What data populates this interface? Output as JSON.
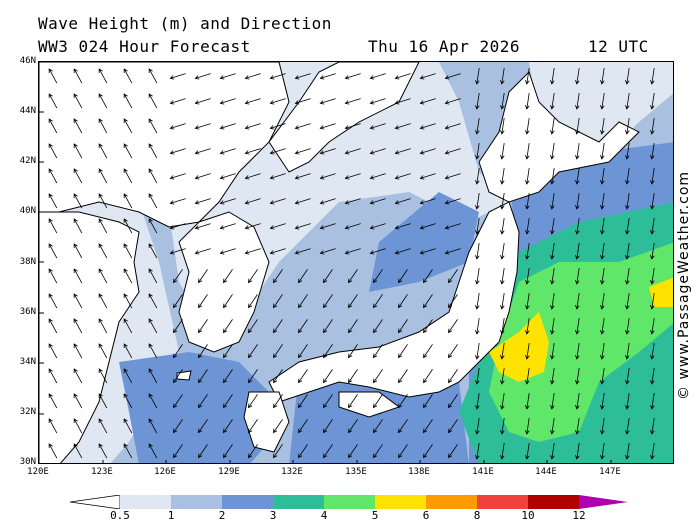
{
  "header": {
    "title": "Wave Height (m) and Direction",
    "model": "WW3 024 Hour Forecast",
    "date": "Thu 16 Apr 2026",
    "time": "12 UTC"
  },
  "copyright": "© www.PassageWeather.com",
  "map": {
    "lat_labels": [
      "46N",
      "44N",
      "42N",
      "40N",
      "38N",
      "36N",
      "34N",
      "32N",
      "30N"
    ],
    "lon_labels": [
      "120E",
      "123E",
      "126E",
      "129E",
      "132E",
      "135E",
      "138E",
      "141E",
      "144E",
      "147E"
    ]
  },
  "legend": {
    "ticks": [
      "0.5",
      "1",
      "2",
      "3",
      "4",
      "5",
      "6",
      "8",
      "10",
      "12"
    ],
    "colors": [
      "#dfe7f3",
      "#a9c0e0",
      "#6d95d6",
      "#2ebd99",
      "#60e76a",
      "#ffe300",
      "#ff9b00",
      "#f04040",
      "#b00000",
      "#b000b0"
    ]
  }
}
